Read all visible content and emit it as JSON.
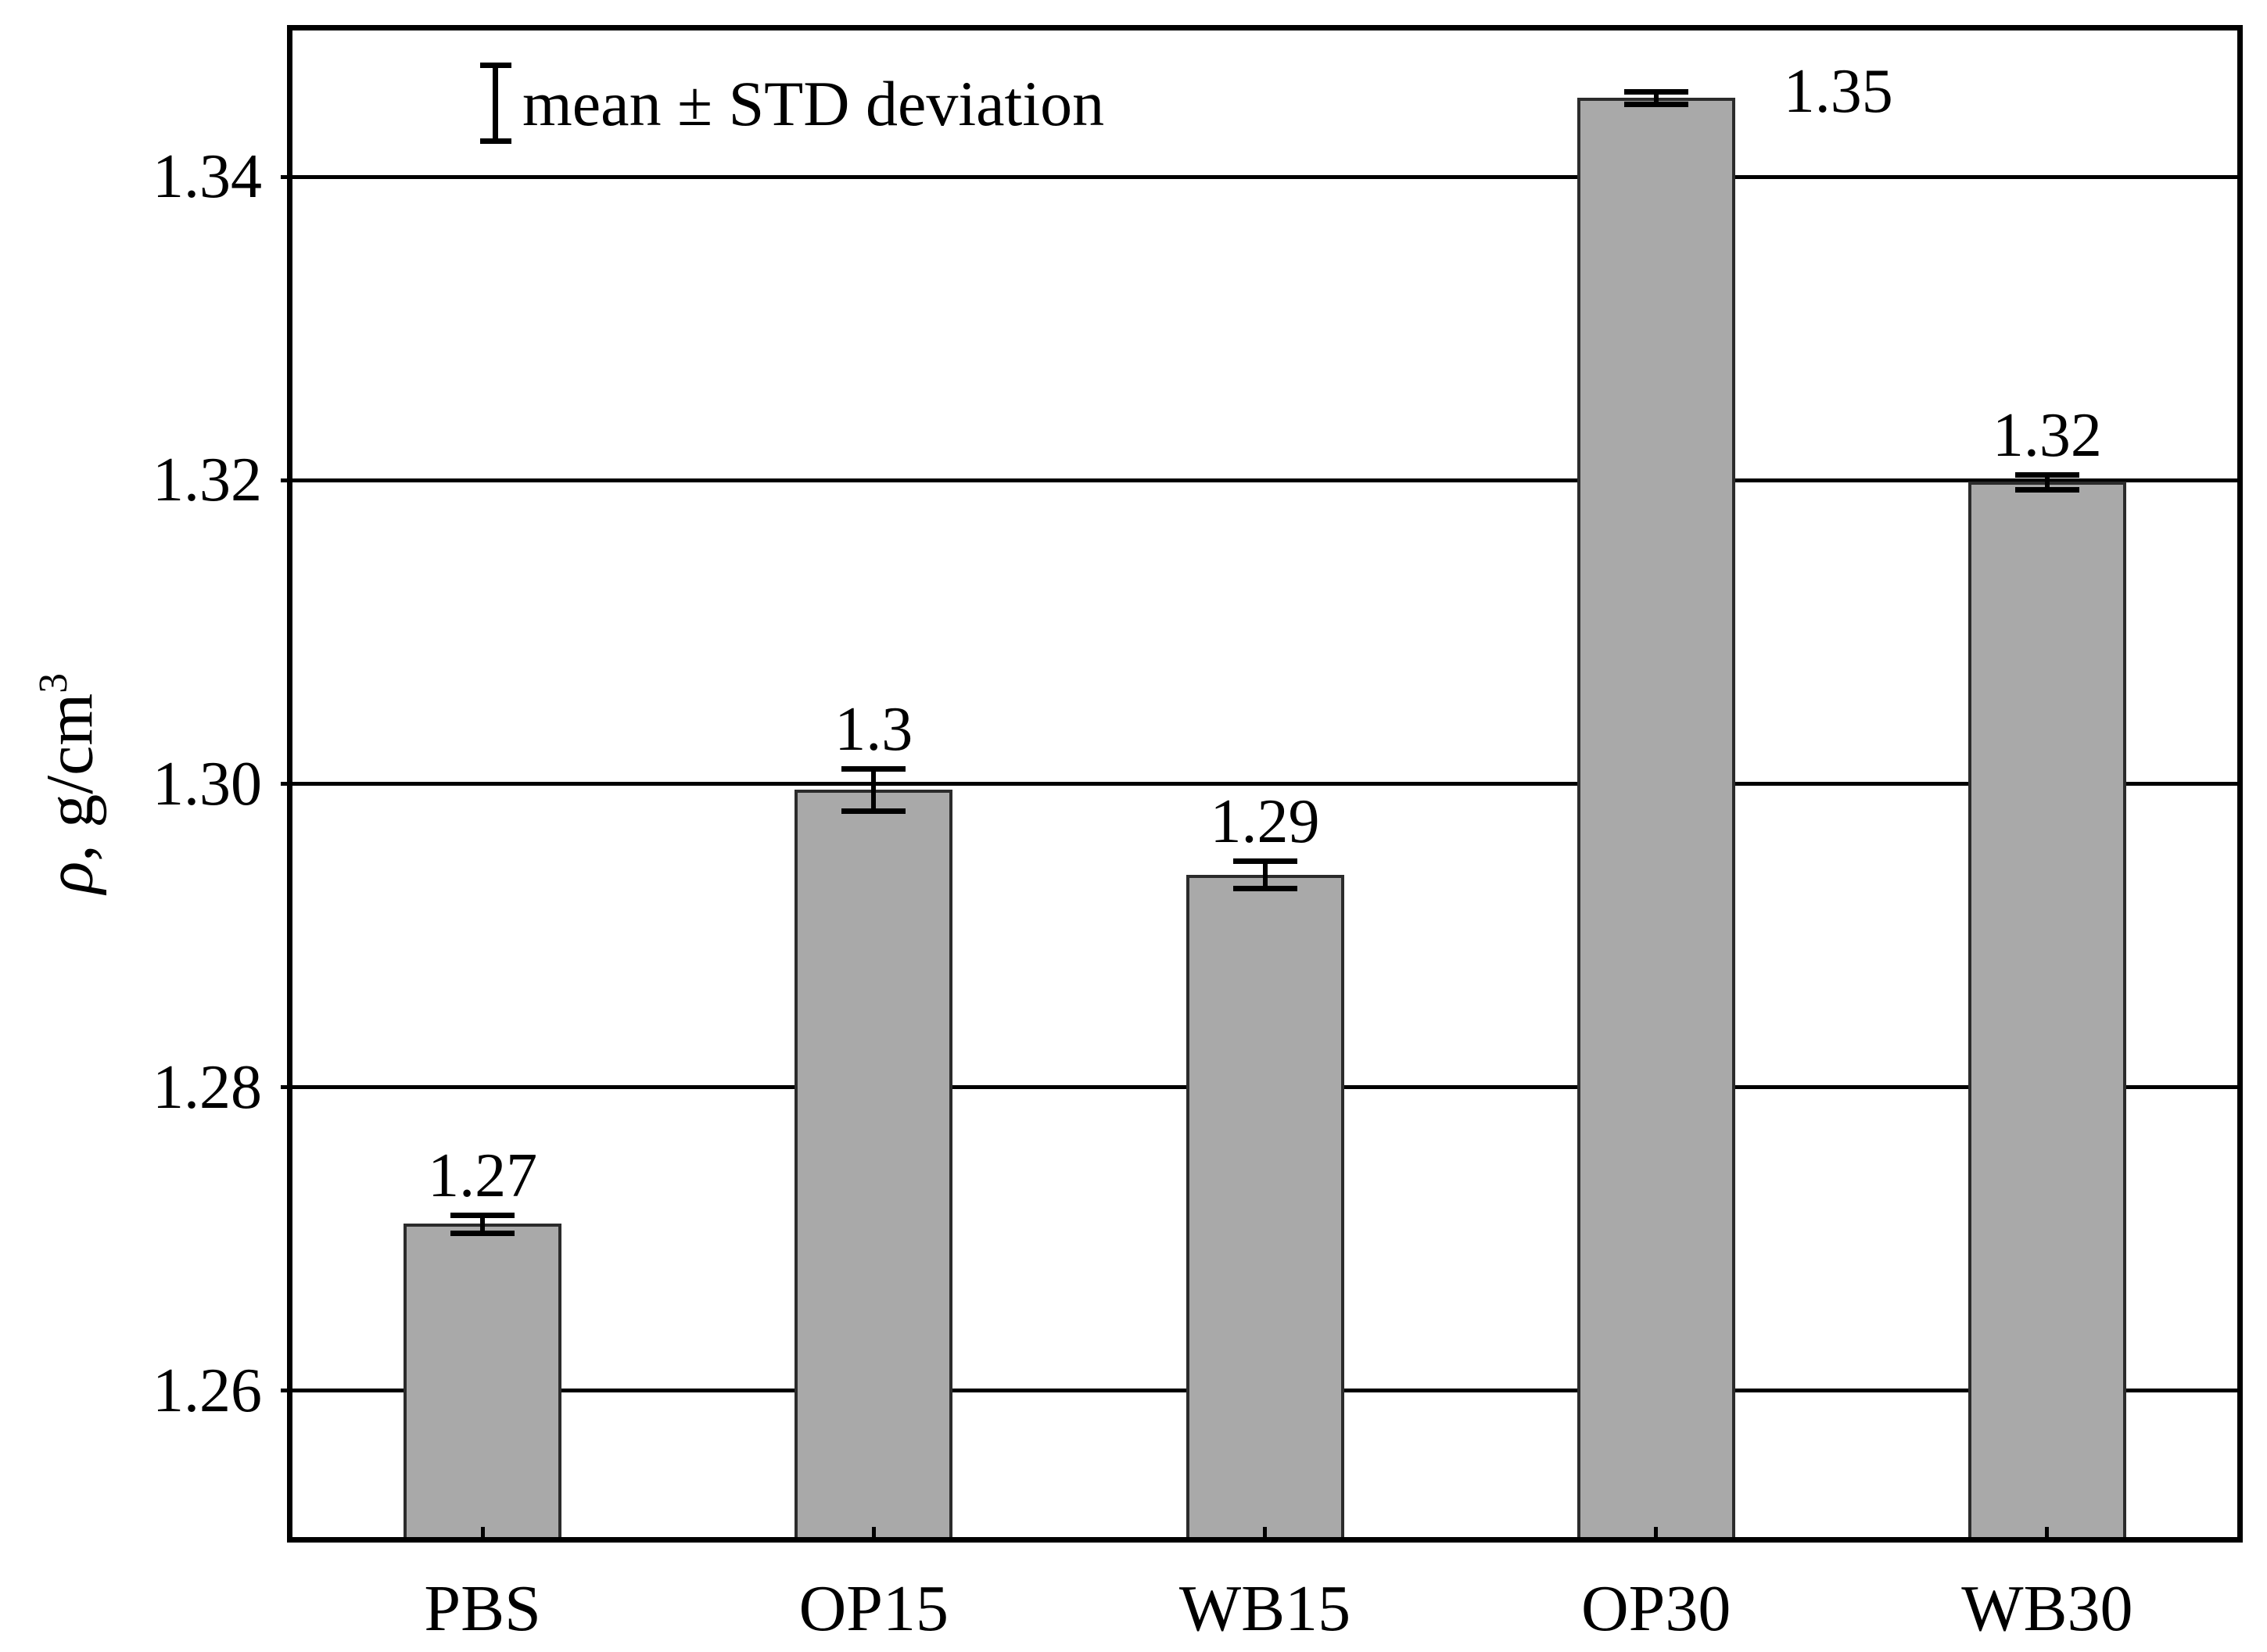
{
  "chart_data": {
    "type": "bar",
    "title": "",
    "categories": [
      "PBS",
      "OP15",
      "WB15",
      "OP30",
      "WB30"
    ],
    "values": [
      1.271,
      1.2996,
      1.294,
      1.3452,
      1.3199
    ],
    "errors": [
      0.0006,
      0.0014,
      0.0009,
      0.0004,
      0.0005
    ],
    "bar_labels": [
      "1.27",
      "1.3",
      "1.29",
      "1.35",
      "1.32"
    ],
    "bar_label_placement": [
      "above",
      "above",
      "above",
      "right",
      "above"
    ],
    "xlabel": "",
    "ylabel": "ρ, g/cm³",
    "ylim": [
      1.25,
      1.35
    ],
    "yticks": [
      1.26,
      1.28,
      1.3,
      1.32,
      1.34
    ],
    "ytick_labels": [
      "1.26",
      "1.28",
      "1.30",
      "1.32",
      "1.34"
    ],
    "grid": "horizontal",
    "legend": {
      "text": "mean ± STD deviation",
      "marker": "errorbar",
      "position": "top-left"
    },
    "colors": {
      "bar_fill": "#a9a9a9",
      "bar_border": "#2b2b2b",
      "axis": "#000000",
      "grid": "#000000",
      "text": "#000000",
      "background": "#ffffff"
    }
  },
  "ylabel_parts": {
    "symbol": "ρ",
    "rest": ", g/cm",
    "sup": "3"
  }
}
